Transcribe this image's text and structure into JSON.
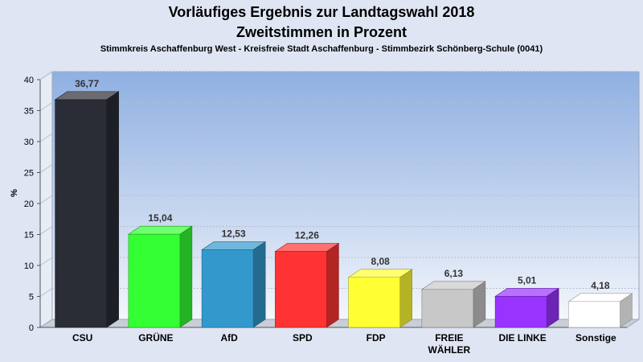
{
  "chart_data": {
    "type": "bar",
    "title": "Vorläufiges Ergebnis zur Landtagswahl 2018",
    "subtitle": "Zweitstimmen in Prozent",
    "caption": "Stimmkreis Aschaffenburg West - Kreisfreie Stadt Aschaffenburg - Stimmbezirk Schönberg-Schule (0041)",
    "xlabel": "",
    "ylabel": "%",
    "ylim": [
      0,
      40
    ],
    "yticks": [
      0,
      5,
      10,
      15,
      20,
      25,
      30,
      35,
      40
    ],
    "grid": true,
    "legend": "none",
    "categories": [
      "CSU",
      "GRÜNE",
      "AfD",
      "SPD",
      "FDP",
      "FREIE WÄHLER",
      "DIE LINKE",
      "Sonstige"
    ],
    "category_lines": [
      [
        "CSU"
      ],
      [
        "GRÜNE"
      ],
      [
        "AfD"
      ],
      [
        "SPD"
      ],
      [
        "FDP"
      ],
      [
        "FREIE",
        "WÄHLER"
      ],
      [
        "DIE LINKE"
      ],
      [
        "Sonstige"
      ]
    ],
    "values": [
      36.77,
      15.04,
      12.53,
      12.26,
      8.08,
      6.13,
      5.01,
      4.18
    ],
    "value_labels": [
      "36,77",
      "15,04",
      "12,53",
      "12,26",
      "8,08",
      "6,13",
      "5,01",
      "4,18"
    ],
    "colors": [
      "#2a2d36",
      "#33ff33",
      "#3399cc",
      "#ff3333",
      "#ffff33",
      "#c8c8c8",
      "#9933ff",
      "#ffffff"
    ]
  }
}
